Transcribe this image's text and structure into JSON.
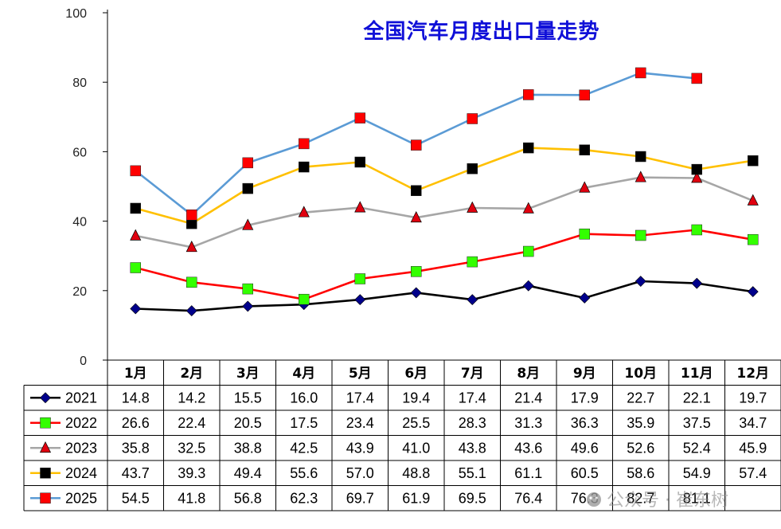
{
  "chart_data": {
    "type": "line",
    "title": "全国汽车月度出口量走势",
    "xlabel": "",
    "ylabel": "",
    "ylim": [
      0,
      100
    ],
    "yticks": [
      0,
      20,
      40,
      60,
      80,
      100
    ],
    "grid": false,
    "legend": "table-bottom",
    "categories": [
      "1月",
      "2月",
      "3月",
      "4月",
      "5月",
      "6月",
      "7月",
      "8月",
      "9月",
      "10月",
      "11月",
      "12月"
    ],
    "series": [
      {
        "name": "2021",
        "color": "#000000",
        "marker": "diamond",
        "marker_color": "#00008b",
        "values": [
          14.8,
          14.2,
          15.5,
          16.0,
          17.4,
          19.4,
          17.4,
          21.4,
          17.9,
          22.7,
          22.1,
          19.7
        ]
      },
      {
        "name": "2022",
        "color": "#ff0000",
        "marker": "square",
        "marker_color": "#33ff00",
        "values": [
          26.6,
          22.4,
          20.5,
          17.5,
          23.4,
          25.5,
          28.3,
          31.3,
          36.3,
          35.9,
          37.5,
          34.7
        ]
      },
      {
        "name": "2023",
        "color": "#a6a6a6",
        "marker": "triangle",
        "marker_color": "#e0000f",
        "values": [
          35.8,
          32.5,
          38.8,
          42.5,
          43.9,
          41.0,
          43.8,
          43.6,
          49.6,
          52.6,
          52.4,
          45.9
        ]
      },
      {
        "name": "2024",
        "color": "#ffc000",
        "marker": "square",
        "marker_color": "#000000",
        "values": [
          43.7,
          39.3,
          49.4,
          55.6,
          57.0,
          48.8,
          55.1,
          61.1,
          60.5,
          58.6,
          54.9,
          57.4
        ]
      },
      {
        "name": "2025",
        "color": "#5b9bd5",
        "marker": "square",
        "marker_color": "#ff0000",
        "values": [
          54.5,
          41.8,
          56.8,
          62.3,
          69.7,
          61.9,
          69.5,
          76.4,
          76.3,
          82.7,
          81.1,
          null
        ]
      }
    ],
    "table_values": [
      [
        "14.8",
        "14.2",
        "15.5",
        "16.0",
        "17.4",
        "19.4",
        "17.4",
        "21.4",
        "17.9",
        "22.7",
        "22.1",
        "19.7"
      ],
      [
        "26.6",
        "22.4",
        "20.5",
        "17.5",
        "23.4",
        "25.5",
        "28.3",
        "31.3",
        "36.3",
        "35.9",
        "37.5",
        "34.7"
      ],
      [
        "35.8",
        "32.5",
        "38.8",
        "42.5",
        "43.9",
        "41.0",
        "43.8",
        "43.6",
        "49.6",
        "52.6",
        "52.4",
        "45.9"
      ],
      [
        "43.7",
        "39.3",
        "49.4",
        "55.6",
        "57.0",
        "48.8",
        "55.1",
        "61.1",
        "60.5",
        "58.6",
        "54.9",
        "57.4"
      ],
      [
        "54.5",
        "41.8",
        "56.8",
        "62.3",
        "69.7",
        "61.9",
        "69.5",
        "76.4",
        "76.3",
        "82.7",
        "81.1",
        ""
      ]
    ]
  },
  "watermark": {
    "text": "公众号 · 崔东树",
    "icon": "wechat-icon"
  }
}
